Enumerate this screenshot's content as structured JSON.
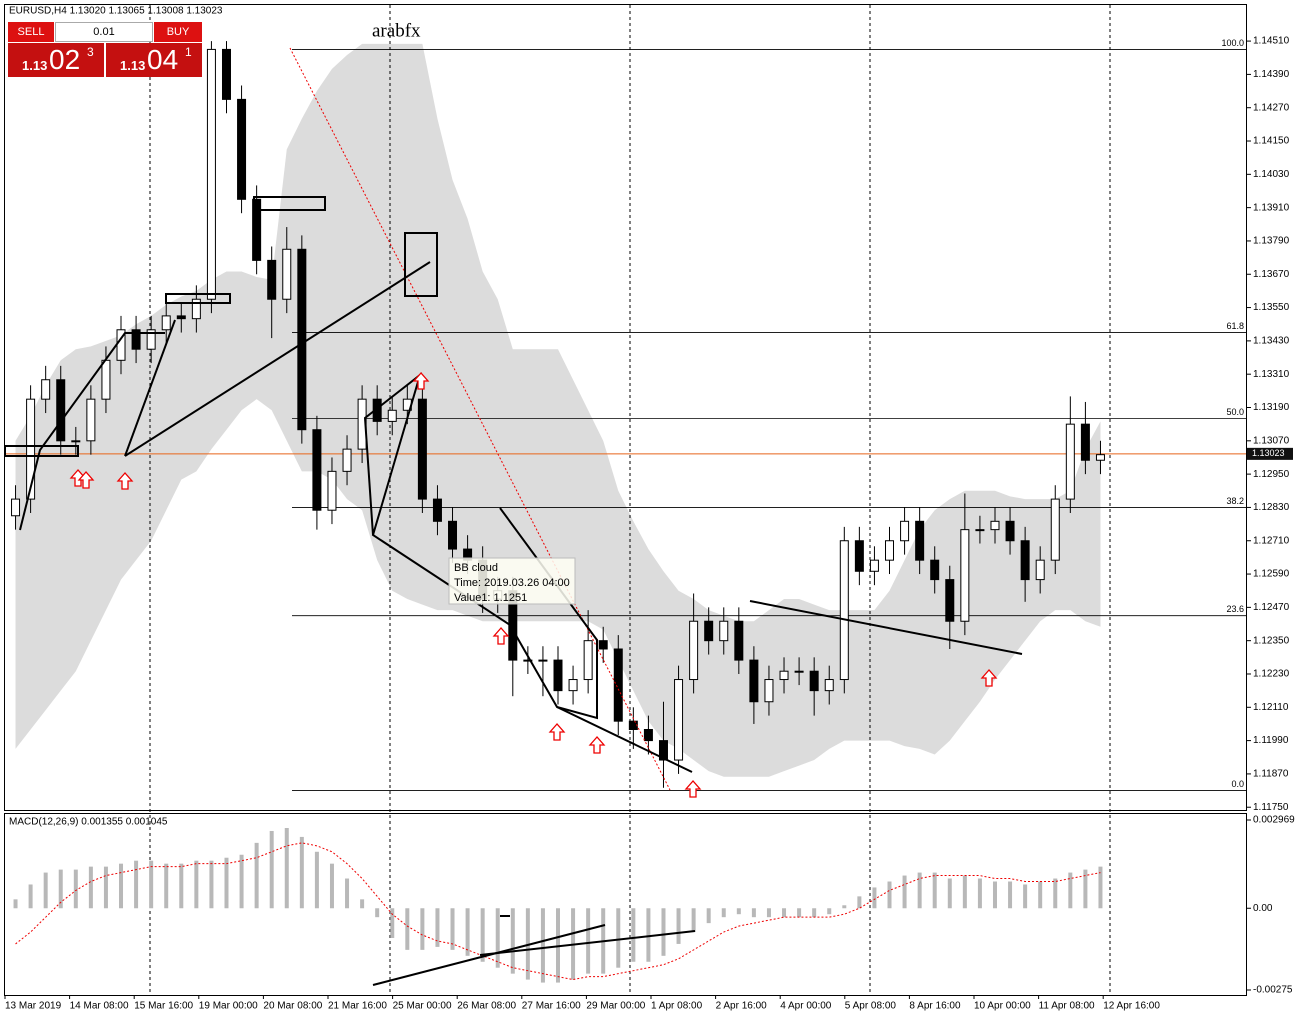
{
  "ui": {
    "header": "EURUSD,H4  1.13020 1.13065 1.13008 1.13023",
    "sell": "SELL",
    "buy": "BUY",
    "lot": "0.01",
    "sell_big": "1.13",
    "sell_pips": "02",
    "sell_frac": "3",
    "buy_big": "1.13",
    "buy_pips": "04",
    "buy_frac": "1",
    "watermark": "arabfx",
    "tooltip": [
      "BB cloud",
      "Time: 2019.03.26 04:00",
      "Value1: 1.1251"
    ],
    "macd_label": "MACD(12,26,9) 0.001355 0.001045"
  },
  "chart_data": {
    "type": "candlestick",
    "x_labels": [
      "13 Mar 2019",
      "14 Mar 08:00",
      "15 Mar 16:00",
      "19 Mar 00:00",
      "20 Mar 08:00",
      "21 Mar 16:00",
      "25 Mar 00:00",
      "26 Mar 08:00",
      "27 Mar 16:00",
      "29 Mar 00:00",
      "1 Apr 08:00",
      "2 Apr 16:00",
      "4 Apr 00:00",
      "5 Apr 08:00",
      "8 Apr 16:00",
      "10 Apr 00:00",
      "11 Apr 08:00",
      "12 Apr 16:00"
    ],
    "open": [
      1.128,
      1.1286,
      1.1322,
      1.1329,
      1.1307,
      1.1307,
      1.1322,
      1.1336,
      1.1347,
      1.134,
      1.1347,
      1.1352,
      1.1351,
      1.1358,
      1.1448,
      1.143,
      1.1394,
      1.1372,
      1.1358,
      1.1376,
      1.1311,
      1.1282,
      1.1296,
      1.1304,
      1.1322,
      1.1314,
      1.1318,
      1.1322,
      1.1286,
      1.1278,
      1.1268,
      1.1264,
      1.125,
      1.1253,
      1.1228,
      1.1228,
      1.1228,
      1.1217,
      1.1221,
      1.1235,
      1.1232,
      1.1206,
      1.1203,
      1.1199,
      1.1192,
      1.1221,
      1.1242,
      1.1235,
      1.1242,
      1.1228,
      1.1213,
      1.1221,
      1.1224,
      1.1224,
      1.1217,
      1.1221,
      1.1271,
      1.126,
      1.1264,
      1.1271,
      1.1278,
      1.1264,
      1.1257,
      1.1242,
      1.1275,
      1.1275,
      1.1278,
      1.1271,
      1.1257,
      1.1264,
      1.1286,
      1.1313,
      1.13
    ],
    "high": [
      1.1291,
      1.1327,
      1.1334,
      1.1334,
      1.1312,
      1.1327,
      1.1341,
      1.1352,
      1.1352,
      1.1352,
      1.1357,
      1.1357,
      1.1363,
      1.1451,
      1.1451,
      1.1435,
      1.1399,
      1.1377,
      1.1384,
      1.1381,
      1.1316,
      1.1301,
      1.1309,
      1.1327,
      1.1327,
      1.1323,
      1.1327,
      1.1327,
      1.1291,
      1.1283,
      1.1273,
      1.1269,
      1.1258,
      1.1258,
      1.1233,
      1.1233,
      1.1233,
      1.1226,
      1.1246,
      1.124,
      1.1237,
      1.1211,
      1.1208,
      1.1213,
      1.1226,
      1.1252,
      1.1247,
      1.1247,
      1.1247,
      1.1233,
      1.1226,
      1.1229,
      1.1229,
      1.1229,
      1.1226,
      1.1276,
      1.1276,
      1.1269,
      1.1276,
      1.1283,
      1.1283,
      1.1269,
      1.1262,
      1.1288,
      1.128,
      1.1283,
      1.1283,
      1.1276,
      1.1269,
      1.1291,
      1.1323,
      1.1321,
      1.1307
    ],
    "low": [
      1.1275,
      1.1281,
      1.1317,
      1.1302,
      1.1302,
      1.1302,
      1.1317,
      1.1331,
      1.1335,
      1.1335,
      1.1342,
      1.1346,
      1.1346,
      1.1353,
      1.1425,
      1.1389,
      1.1367,
      1.1344,
      1.1353,
      1.1306,
      1.1275,
      1.1277,
      1.1291,
      1.1299,
      1.1309,
      1.1309,
      1.1313,
      1.1281,
      1.1273,
      1.1263,
      1.1259,
      1.1245,
      1.1245,
      1.1215,
      1.1223,
      1.1215,
      1.1212,
      1.1212,
      1.1216,
      1.1227,
      1.1201,
      1.1196,
      1.1194,
      1.1182,
      1.1187,
      1.1216,
      1.123,
      1.123,
      1.1223,
      1.1205,
      1.1208,
      1.1216,
      1.1219,
      1.1208,
      1.1212,
      1.1216,
      1.1255,
      1.1255,
      1.1259,
      1.1266,
      1.1259,
      1.1252,
      1.1232,
      1.1237,
      1.127,
      1.127,
      1.1266,
      1.1249,
      1.1252,
      1.1259,
      1.1281,
      1.1295,
      1.1295
    ],
    "close": [
      1.1286,
      1.1322,
      1.1329,
      1.1307,
      1.1307,
      1.1322,
      1.1336,
      1.1347,
      1.134,
      1.1347,
      1.1352,
      1.1351,
      1.1358,
      1.1448,
      1.143,
      1.1394,
      1.1372,
      1.1358,
      1.1376,
      1.1311,
      1.1282,
      1.1296,
      1.1304,
      1.1322,
      1.1314,
      1.1318,
      1.1322,
      1.1286,
      1.1278,
      1.1268,
      1.1264,
      1.125,
      1.1253,
      1.1228,
      1.1228,
      1.1228,
      1.1217,
      1.1221,
      1.1235,
      1.1232,
      1.1206,
      1.1203,
      1.1199,
      1.1192,
      1.1221,
      1.1242,
      1.1235,
      1.1242,
      1.1228,
      1.1213,
      1.1221,
      1.1224,
      1.1224,
      1.1217,
      1.1221,
      1.1271,
      1.126,
      1.1264,
      1.1271,
      1.1278,
      1.1264,
      1.1257,
      1.1242,
      1.1275,
      1.1275,
      1.1278,
      1.1271,
      1.1257,
      1.1264,
      1.1286,
      1.1313,
      1.13,
      1.1302
    ],
    "bb_upper": [
      1.1307,
      1.1316,
      1.1327,
      1.1336,
      1.134,
      1.1341,
      1.1343,
      1.1345,
      1.1349,
      1.1352,
      1.1356,
      1.1359,
      1.1361,
      1.1365,
      1.1368,
      1.1368,
      1.1366,
      1.1365,
      1.1412,
      1.1423,
      1.1433,
      1.1441,
      1.1446,
      1.145,
      1.145,
      1.145,
      1.145,
      1.145,
      1.1423,
      1.1401,
      1.1387,
      1.1368,
      1.1358,
      1.134,
      1.134,
      1.134,
      1.134,
      1.1329,
      1.1318,
      1.1307,
      1.1289,
      1.1278,
      1.1268,
      1.126,
      1.1253,
      1.125,
      1.1246,
      1.1244,
      1.1242,
      1.1242,
      1.1246,
      1.125,
      1.125,
      1.1248,
      1.1246,
      1.1246,
      1.1246,
      1.1246,
      1.1253,
      1.1264,
      1.1275,
      1.1282,
      1.1286,
      1.1289,
      1.1289,
      1.1289,
      1.1287,
      1.1286,
      1.1286,
      1.1286,
      1.1289,
      1.1304,
      1.1314
    ],
    "bb_lower": [
      1.1196,
      1.1203,
      1.121,
      1.1217,
      1.1224,
      1.1235,
      1.1246,
      1.1257,
      1.1264,
      1.1271,
      1.1282,
      1.1293,
      1.1296,
      1.1304,
      1.1311,
      1.1318,
      1.1322,
      1.1318,
      1.1307,
      1.1296,
      1.1296,
      1.1293,
      1.1286,
      1.1282,
      1.1264,
      1.1253,
      1.125,
      1.1248,
      1.1246,
      1.1246,
      1.1244,
      1.1242,
      1.1242,
      1.1242,
      1.1242,
      1.1242,
      1.1242,
      1.1242,
      1.1242,
      1.1239,
      1.1228,
      1.1217,
      1.1206,
      1.1199,
      1.1196,
      1.1192,
      1.1188,
      1.1186,
      1.1186,
      1.1186,
      1.1186,
      1.1188,
      1.119,
      1.1192,
      1.1196,
      1.1199,
      1.1199,
      1.1199,
      1.1199,
      1.1197,
      1.1196,
      1.1194,
      1.1199,
      1.1206,
      1.1213,
      1.1221,
      1.1228,
      1.1235,
      1.1242,
      1.1246,
      1.1246,
      1.1242,
      1.124
    ],
    "ylim": [
      1.1174,
      1.1464
    ],
    "yticks": [
      {
        "value": 1.1451,
        "label": "1.14510"
      },
      {
        "value": 1.1439,
        "label": "1.14390"
      },
      {
        "value": 1.1427,
        "label": "1.14270"
      },
      {
        "value": 1.1415,
        "label": "1.14150"
      },
      {
        "value": 1.1403,
        "label": "1.14030"
      },
      {
        "value": 1.1391,
        "label": "1.13910"
      },
      {
        "value": 1.1379,
        "label": "1.13790"
      },
      {
        "value": 1.1367,
        "label": "1.13670"
      },
      {
        "value": 1.1355,
        "label": "1.13550"
      },
      {
        "value": 1.1343,
        "label": "1.13430"
      },
      {
        "value": 1.1331,
        "label": "1.13310"
      },
      {
        "value": 1.1319,
        "label": "1.13190"
      },
      {
        "value": 1.1307,
        "label": "1.13070"
      },
      {
        "value": 1.1295,
        "label": "1.12950"
      },
      {
        "value": 1.1283,
        "label": "1.12830"
      },
      {
        "value": 1.1271,
        "label": "1.12710"
      },
      {
        "value": 1.1259,
        "label": "1.12590"
      },
      {
        "value": 1.1247,
        "label": "1.12470"
      },
      {
        "value": 1.1235,
        "label": "1.12350"
      },
      {
        "value": 1.1223,
        "label": "1.12230"
      },
      {
        "value": 1.1211,
        "label": "1.12110"
      },
      {
        "value": 1.1199,
        "label": "1.11990"
      },
      {
        "value": 1.1187,
        "label": "1.11870"
      },
      {
        "value": 1.1175,
        "label": "1.11750"
      }
    ],
    "last_price": 1.13023,
    "fib_levels": [
      {
        "value": 1.1448,
        "label": "100.0"
      },
      {
        "value": 1.1346,
        "label": "61.8"
      },
      {
        "value": 1.1315,
        "label": "50.0"
      },
      {
        "value": 1.1283,
        "label": "38.2"
      },
      {
        "value": 1.1244,
        "label": "23.6"
      },
      {
        "value": 1.1181,
        "label": "0.0"
      }
    ],
    "macd_hist": [
      0.0003,
      0.0008,
      0.0012,
      0.0013,
      0.0013,
      0.0014,
      0.0014,
      0.0015,
      0.0016,
      0.0016,
      0.0015,
      0.0015,
      0.0016,
      0.0016,
      0.0017,
      0.0018,
      0.0022,
      0.0026,
      0.0027,
      0.0024,
      0.0019,
      0.0015,
      0.001,
      0.0003,
      -0.0003,
      -0.001,
      -0.0014,
      -0.0014,
      -0.0013,
      -0.0014,
      -0.0016,
      -0.0018,
      -0.002,
      -0.0022,
      -0.0024,
      -0.0025,
      -0.0025,
      -0.0024,
      -0.0022,
      -0.0022,
      -0.002,
      -0.0018,
      -0.0018,
      -0.0016,
      -0.0012,
      -0.0008,
      -0.0005,
      -0.0003,
      -0.0002,
      -0.0003,
      -0.0003,
      -0.0003,
      -0.0003,
      -0.0003,
      -0.0002,
      0.0001,
      0.0004,
      0.0007,
      0.0009,
      0.0011,
      0.0012,
      0.0012,
      0.001,
      0.0011,
      0.001,
      0.0009,
      0.0009,
      0.0008,
      0.0009,
      0.001,
      0.0012,
      0.0013,
      0.0014
    ],
    "macd_signal": [
      -0.0012,
      -0.0008,
      -0.0003,
      0.0002,
      0.0006,
      0.0009,
      0.0011,
      0.0012,
      0.0013,
      0.0014,
      0.0014,
      0.0014,
      0.0015,
      0.0015,
      0.0015,
      0.0016,
      0.0017,
      0.0019,
      0.0021,
      0.0022,
      0.0021,
      0.0019,
      0.0015,
      0.001,
      0.0004,
      -0.0002,
      -0.0006,
      -0.0009,
      -0.0011,
      -0.0012,
      -0.0014,
      -0.0016,
      -0.0018,
      -0.002,
      -0.0021,
      -0.0022,
      -0.0023,
      -0.0024,
      -0.0023,
      -0.0023,
      -0.0022,
      -0.0021,
      -0.002,
      -0.0019,
      -0.0017,
      -0.0014,
      -0.0011,
      -0.0008,
      -0.0006,
      -0.0005,
      -0.0004,
      -0.0003,
      -0.0003,
      -0.0003,
      -0.0003,
      -0.0002,
      0.0,
      0.0003,
      0.0006,
      0.0008,
      0.001,
      0.0011,
      0.0011,
      0.0011,
      0.0011,
      0.001,
      0.001,
      0.0009,
      0.0009,
      0.0009,
      0.001,
      0.0011,
      0.0012
    ],
    "macd_ylim": [
      -0.00275,
      0.002969
    ],
    "macd_yticks": [
      0.002969,
      {
        "value": 0,
        "label": "0.00"
      },
      -0.00275
    ]
  }
}
